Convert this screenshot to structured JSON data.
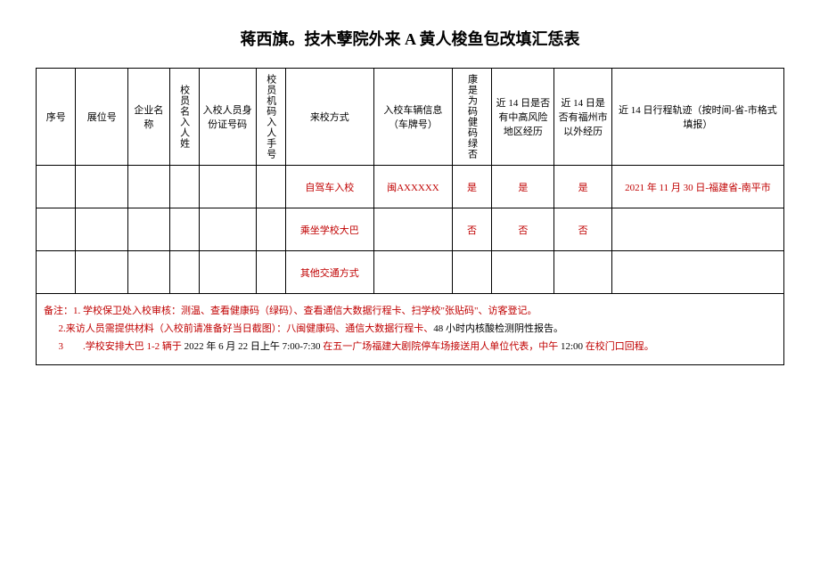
{
  "title": "蒋西旗。技木孽院外来 A 黄人梭鱼包改填汇恁表",
  "headers": {
    "seq": "序号",
    "booth": "展位号",
    "company": "企业名称",
    "person_name": "校员名入人姓",
    "id_number": "入校人员身份证号码",
    "phone": "校员机码入人手号",
    "entry_method": "来校方式",
    "vehicle": "入校车辆信息（车牌号）",
    "health_code": "康是为码健码绿否",
    "risk_14": "近 14 日是否有中高风险地区经历",
    "fuzhou_14": "近 14 日是否有福州市以外经历",
    "trace_14": "近 14 日行程轨迹（按时间-省-市格式填报）"
  },
  "rows": [
    {
      "entry_method": "自驾车入校",
      "vehicle": "闽AXXXXX",
      "health_code": "是",
      "risk_14": "是",
      "fuzhou_14": "是",
      "trace_14": "2021 年 11 月 30 日-福建省-南平市"
    },
    {
      "entry_method": "乘坐学校大巴",
      "vehicle": "",
      "health_code": "否",
      "risk_14": "否",
      "fuzhou_14": "否",
      "trace_14": ""
    },
    {
      "entry_method": "其他交通方式",
      "vehicle": "",
      "health_code": "",
      "risk_14": "",
      "fuzhou_14": "",
      "trace_14": ""
    }
  ],
  "notes": {
    "prefix": "备注：",
    "n1": "1. 学校保卫处入校审核：测温、查看健康码（绿码）、查看通信大数据行程卡、扫学校\"张贴码\"、访客登记。",
    "n2_a": "2.来访人员需提供材料（入校前请准备好当日截图）：八闽健康码、通信大数据行程卡、",
    "n2_b": "48 小时内核酸检测阴性报告。",
    "n3_a": "3　　.学校安排大巴 1-2 辆于 ",
    "n3_b": "2022 年 6 月 22 日上午 7:00-7:30 ",
    "n3_c": "在五一广场福建大剧院停车场接送用人单位代表，中午 ",
    "n3_d": "12:00 ",
    "n3_e": "在校门口回程。"
  },
  "colors": {
    "text": "#000000",
    "highlight": "#c00000",
    "background": "#ffffff",
    "border": "#000000"
  }
}
